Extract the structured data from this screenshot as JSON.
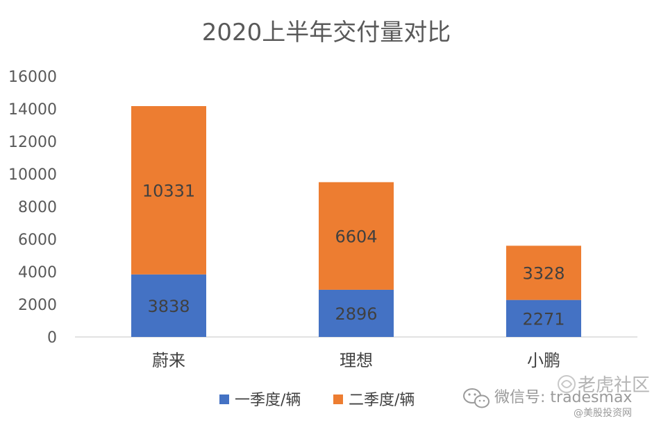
{
  "chart_data": {
    "type": "bar",
    "stacked": true,
    "title": "2020上半年交付量对比",
    "xlabel": "",
    "ylabel": "",
    "ylim": [
      0,
      16000
    ],
    "yticks": [
      0,
      2000,
      4000,
      6000,
      8000,
      10000,
      12000,
      14000,
      16000
    ],
    "categories": [
      "蔚来",
      "理想",
      "小鹏"
    ],
    "series": [
      {
        "name": "一季度/辆",
        "values": [
          3838,
          2896,
          2271
        ],
        "color": "#4472C4"
      },
      {
        "name": "二季度/辆",
        "values": [
          10331,
          6604,
          3328
        ],
        "color": "#ED7D31"
      }
    ],
    "grid": false,
    "legend_position": "bottom"
  },
  "watermark": {
    "wechat": "微信号: tradesmax",
    "community": "老虎社区",
    "site": "@美股投资网"
  }
}
